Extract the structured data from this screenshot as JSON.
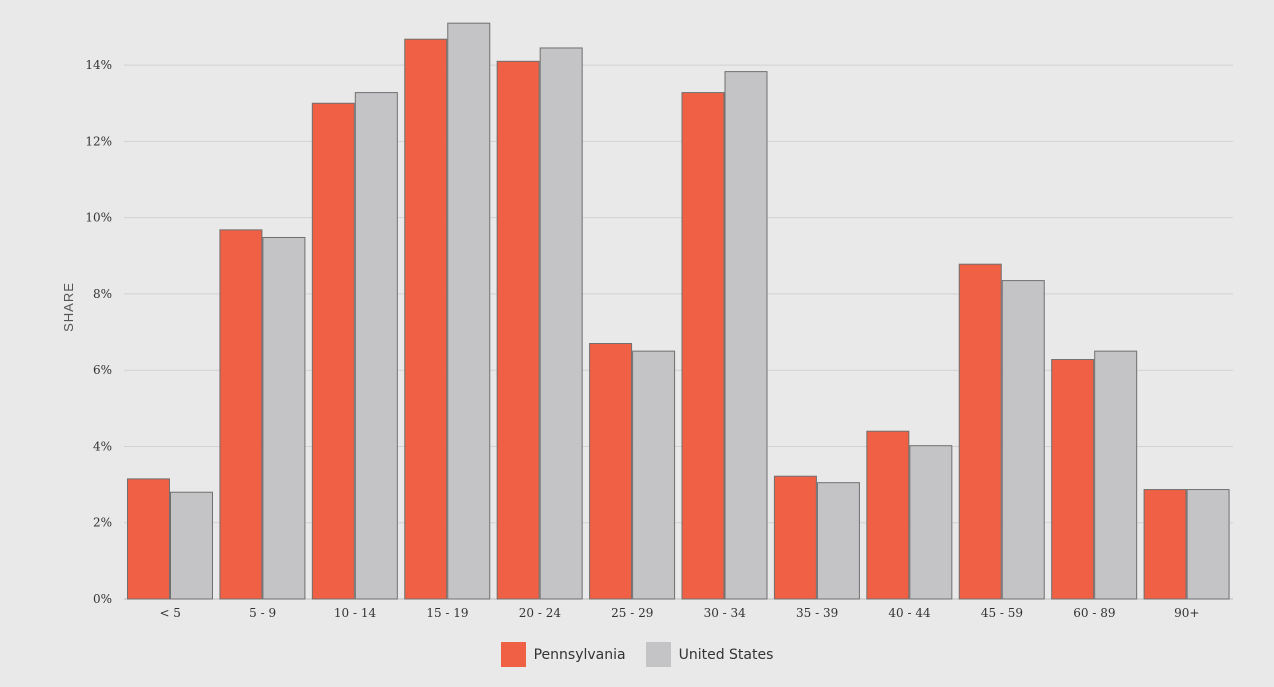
{
  "chart_data": {
    "type": "bar",
    "ylabel": "SHARE",
    "xlabel": "",
    "title": "",
    "ylim": [
      0,
      0.15
    ],
    "yticks": [
      {
        "value": 0,
        "label": "0%"
      },
      {
        "value": 0.02,
        "label": "2%"
      },
      {
        "value": 0.04,
        "label": "4%"
      },
      {
        "value": 0.06,
        "label": "6%"
      },
      {
        "value": 0.08,
        "label": "8%"
      },
      {
        "value": 0.1,
        "label": "10%"
      },
      {
        "value": 0.12,
        "label": "12%"
      },
      {
        "value": 0.14,
        "label": "14%"
      }
    ],
    "categories": [
      "< 5",
      "5 - 9",
      "10 - 14",
      "15 - 19",
      "20 - 24",
      "25 - 29",
      "30 - 34",
      "35 - 39",
      "40 - 44",
      "45 - 59",
      "60 - 89",
      "90+"
    ],
    "series": [
      {
        "name": "Pennsylvania",
        "color": "#ef6044",
        "values": [
          0.0315,
          0.0968,
          0.13,
          0.1468,
          0.141,
          0.067,
          0.1328,
          0.0322,
          0.044,
          0.0878,
          0.0628,
          0.0287
        ]
      },
      {
        "name": "United States",
        "color": "#c4c4c7",
        "values": [
          0.028,
          0.0948,
          0.1328,
          0.151,
          0.1445,
          0.065,
          0.1383,
          0.0305,
          0.0402,
          0.0835,
          0.065,
          0.0287
        ]
      }
    ],
    "grid": true,
    "legend_position": "bottom-center"
  }
}
